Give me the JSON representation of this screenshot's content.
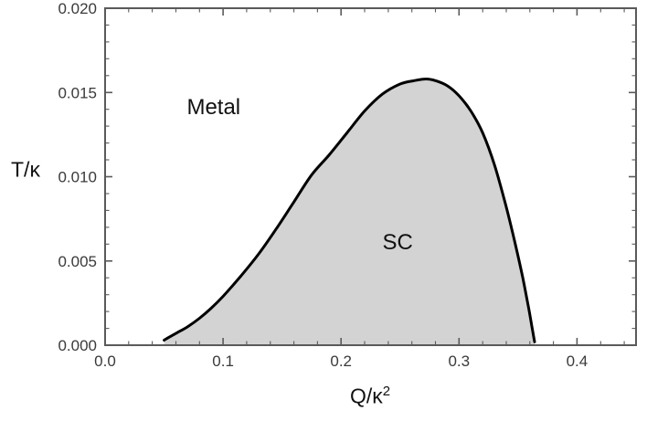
{
  "labels": {
    "y_axis": "T/κ",
    "x_axis_base": "Q/κ",
    "x_axis_exp": "2"
  },
  "chart_data": {
    "type": "area",
    "title": "",
    "xlabel": "Q/κ^2",
    "ylabel": "T/κ",
    "xlim": [
      0.0,
      0.45
    ],
    "ylim": [
      0.0,
      0.02
    ],
    "x_ticks": [
      0.0,
      0.1,
      0.2,
      0.3,
      0.4
    ],
    "x_tick_labels": [
      "0.0",
      "0.1",
      "0.2",
      "0.3",
      "0.4"
    ],
    "y_ticks": [
      0.0,
      0.005,
      0.01,
      0.015,
      0.02
    ],
    "y_tick_labels": [
      "0.000",
      "0.005",
      "0.010",
      "0.015",
      "0.020"
    ],
    "x_minor_step": 0.02,
    "y_minor_step": 0.001,
    "grid": false,
    "legend": false,
    "series": [
      {
        "name": "SC phase boundary",
        "x": [
          0.05,
          0.06,
          0.07,
          0.08,
          0.09,
          0.1,
          0.115,
          0.13,
          0.145,
          0.16,
          0.175,
          0.19,
          0.205,
          0.22,
          0.235,
          0.25,
          0.262,
          0.272,
          0.28,
          0.29,
          0.3,
          0.31,
          0.32,
          0.33,
          0.34,
          0.348,
          0.354,
          0.359,
          0.362,
          0.364
        ],
        "y": [
          0.0003,
          0.0007,
          0.0011,
          0.0016,
          0.0022,
          0.0029,
          0.0041,
          0.0054,
          0.0069,
          0.0085,
          0.0101,
          0.0113,
          0.0126,
          0.0139,
          0.0149,
          0.0155,
          0.0157,
          0.0158,
          0.0157,
          0.0154,
          0.0148,
          0.0139,
          0.0126,
          0.0107,
          0.0082,
          0.0059,
          0.004,
          0.0022,
          0.001,
          0.0002
        ]
      }
    ],
    "annotations": [
      {
        "name": "metal",
        "text": "Metal",
        "x": 0.092,
        "y": 0.0141
      },
      {
        "name": "sc",
        "text": "SC",
        "x": 0.248,
        "y": 0.0061
      }
    ],
    "style": {
      "fill_color": "#d3d3d3",
      "line_color": "#000000",
      "frame_color": "#5a5a5a",
      "tick_color": "#5a5a5a",
      "text_color": "#3a3a3a"
    }
  }
}
